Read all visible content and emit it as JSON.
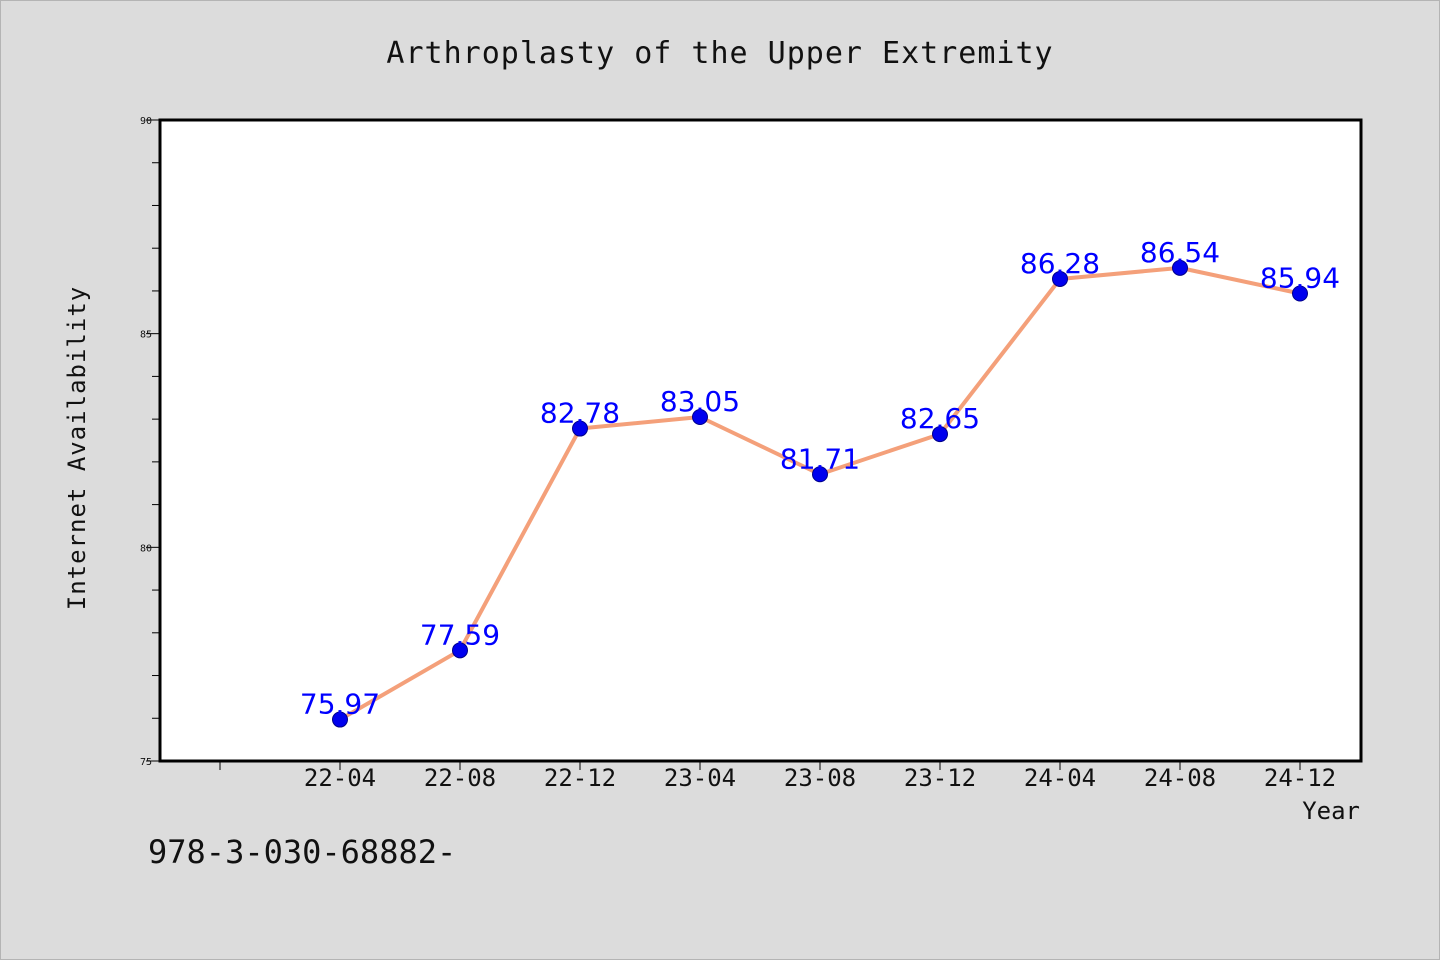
{
  "chart_data": {
    "type": "line",
    "title": "Arthroplasty of the Upper Extremity",
    "xlabel": "Year",
    "ylabel": "Internet Availability",
    "categories": [
      "22-04",
      "22-08",
      "22-12",
      "23-04",
      "23-08",
      "23-12",
      "24-04",
      "24-08",
      "24-12"
    ],
    "values": [
      75.97,
      77.59,
      82.78,
      83.05,
      81.71,
      82.65,
      86.28,
      86.54,
      85.94
    ],
    "data_labels": [
      "75.97",
      "77.59",
      "82.78",
      "83.05",
      "81.71",
      "82.65",
      "86.28",
      "86.54",
      "85.94"
    ],
    "ylim": [
      75,
      90
    ],
    "yticks": [
      75,
      80,
      85,
      90
    ],
    "ytick_labels": [
      "75",
      "80",
      "85",
      "90"
    ],
    "line_color": "#f4a07a",
    "marker_color": "#0000ee",
    "label_color": "#0000ff",
    "grid": false,
    "legend": "none"
  },
  "footer": {
    "text": "978-3-030-68882-"
  }
}
